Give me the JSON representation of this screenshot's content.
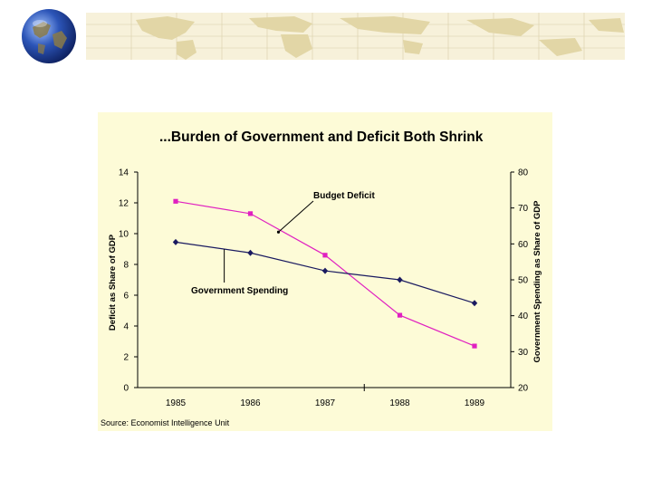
{
  "slide": {
    "map_color": "#e8dcb0",
    "chart_panel_color": "#fdfbd7"
  },
  "chart_data": {
    "type": "line",
    "title": "...Burden of Government and Deficit Both Shrink",
    "categories": [
      "1985",
      "1986",
      "1987",
      "1988",
      "1989"
    ],
    "ylabel_left": "Deficit as Share of GDP",
    "ylabel_right": "Government Spending as Share of GDP",
    "y_left_ticks": [
      "0",
      "2",
      "4",
      "6",
      "8",
      "10",
      "12",
      "14"
    ],
    "y_right_ticks": [
      "20",
      "30",
      "40",
      "50",
      "60",
      "70",
      "80"
    ],
    "ylim_left": [
      0,
      14
    ],
    "ylim_right": [
      20,
      80
    ],
    "grid": false,
    "series": [
      {
        "name": "Budget Deficit",
        "axis": "left",
        "color": "#e020c0",
        "marker": "square",
        "values": [
          12.1,
          11.3,
          8.6,
          4.7,
          2.7
        ]
      },
      {
        "name": "Government Spending",
        "axis": "right",
        "color": "#1a1a60",
        "marker": "diamond",
        "values": [
          60.5,
          57.5,
          52.5,
          50.0,
          43.5
        ]
      }
    ],
    "annotations": [
      {
        "text": "Budget Deficit",
        "target_series": 0
      },
      {
        "text": "Government Spending",
        "target_series": 1
      }
    ],
    "source": "Source: Economist Intelligence Unit"
  }
}
